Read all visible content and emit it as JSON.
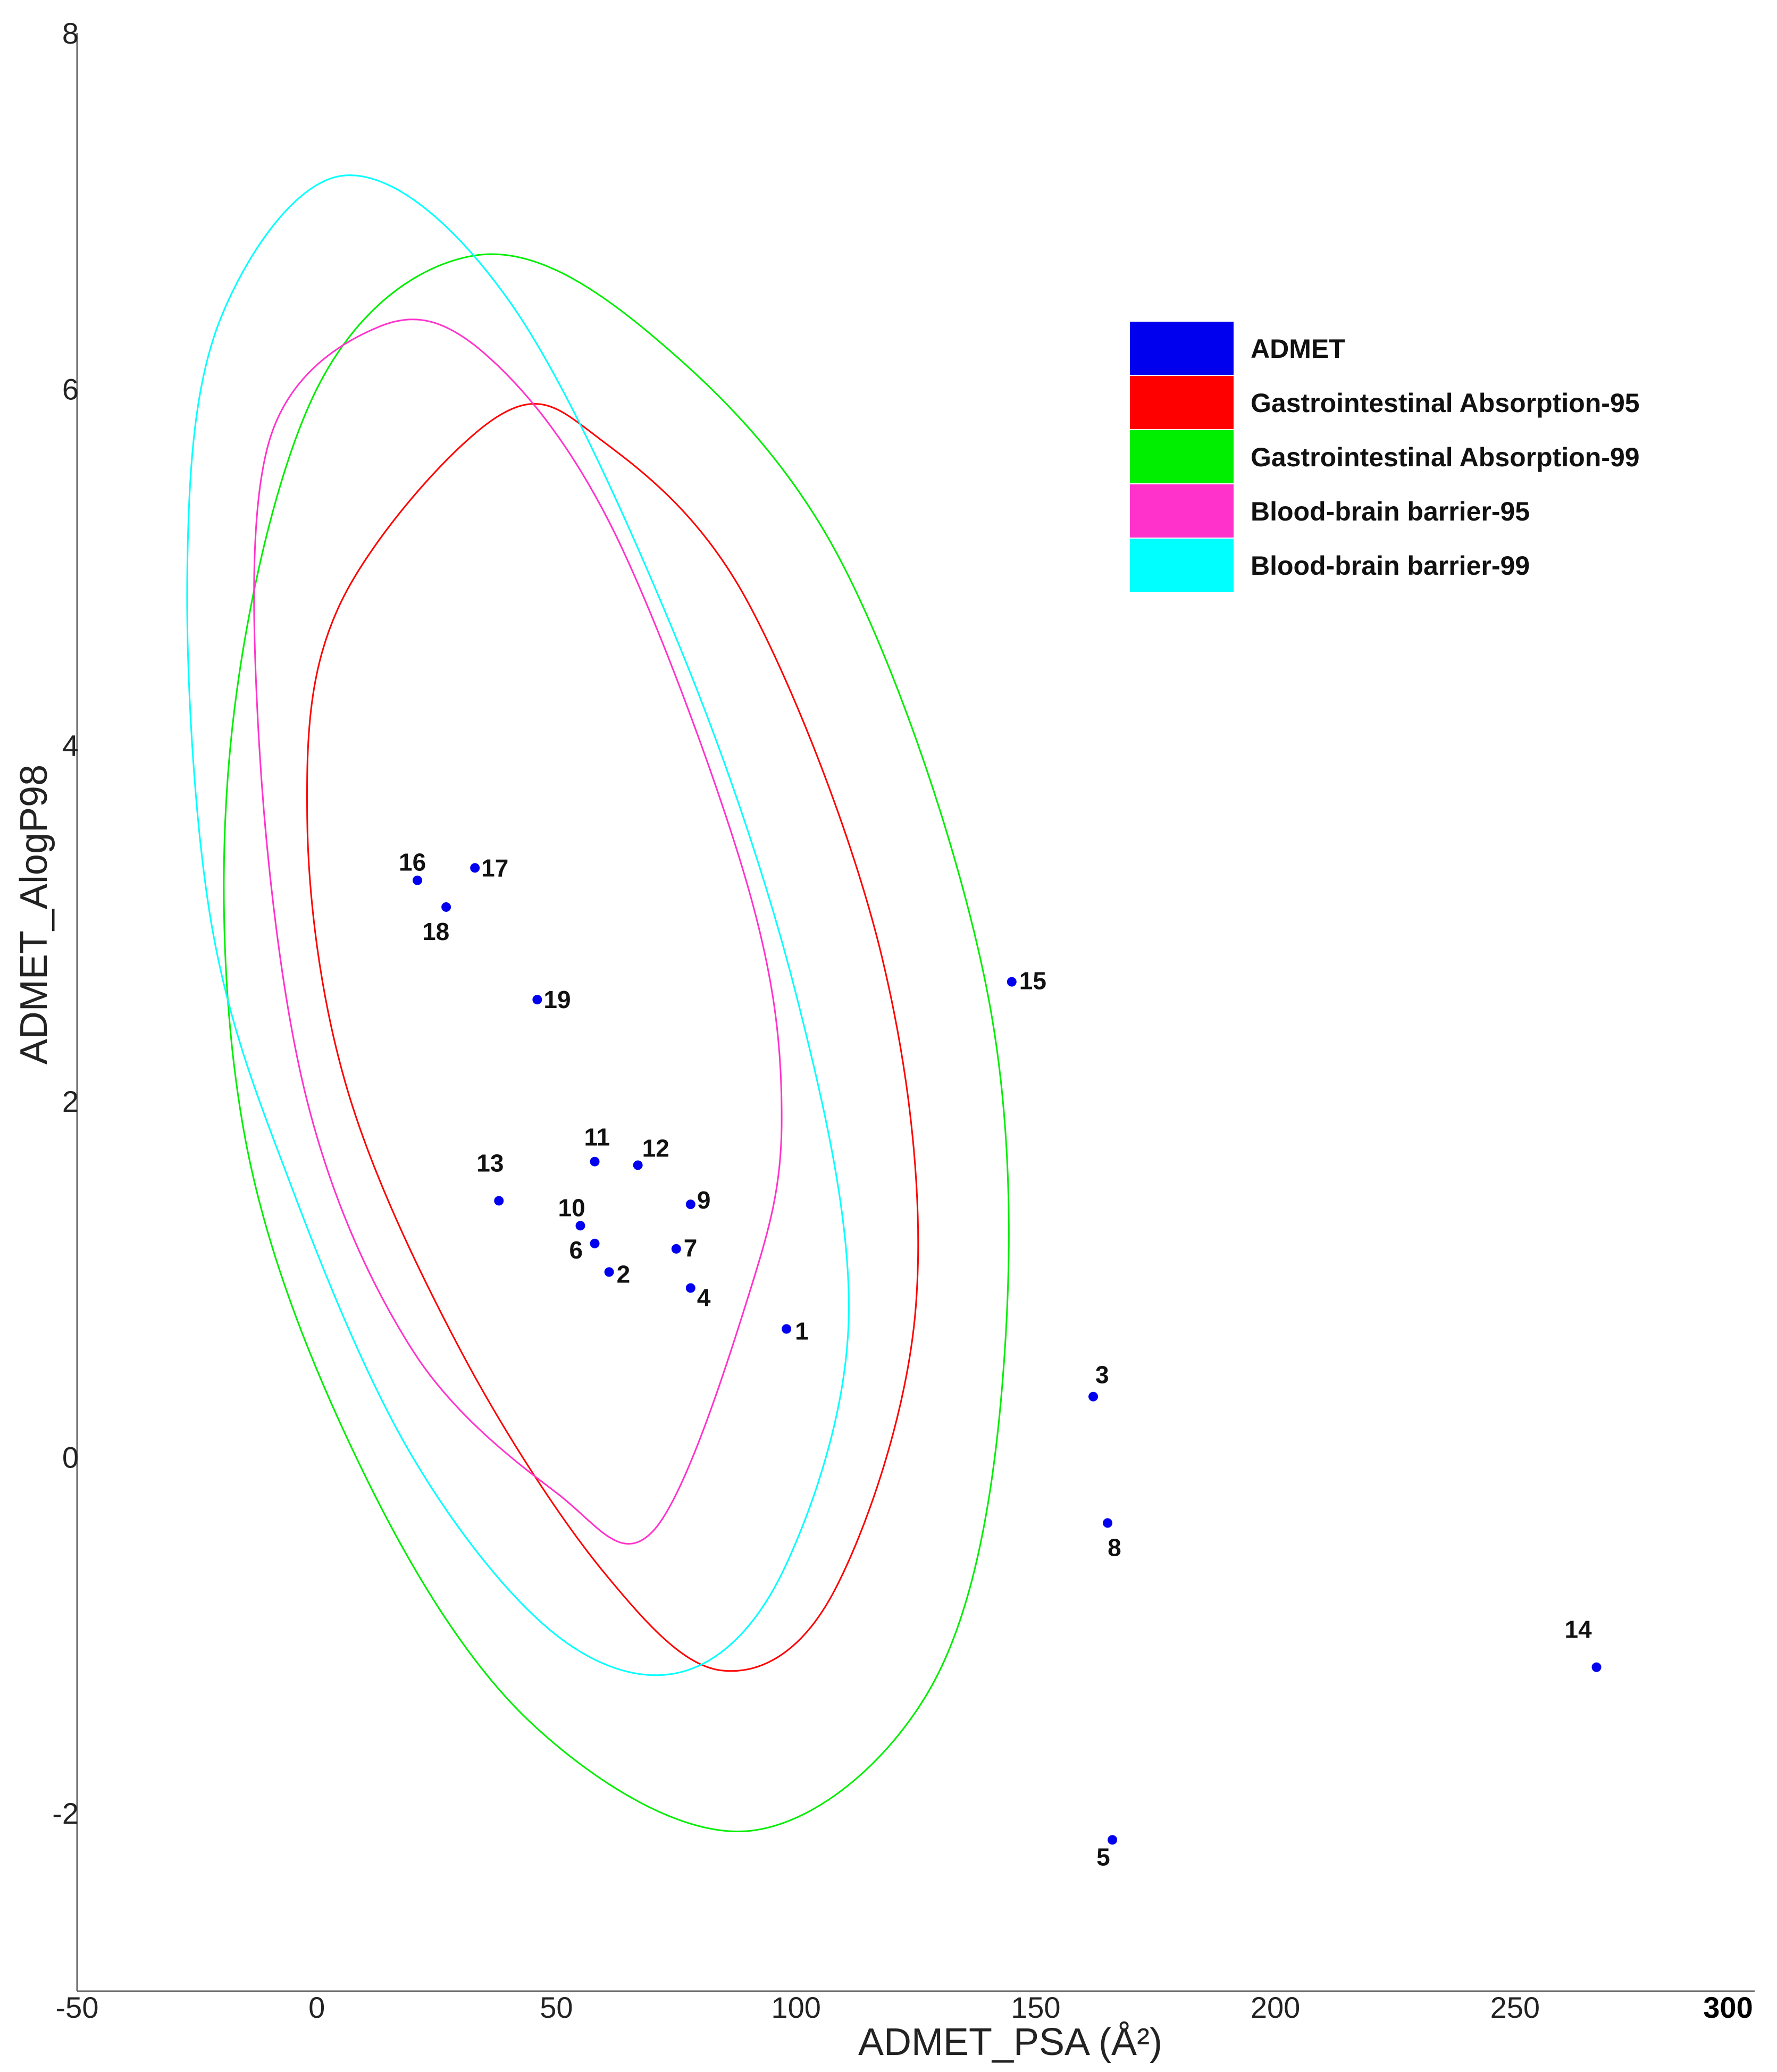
{
  "chart_data": {
    "type": "scatter",
    "title": "",
    "xlabel": "ADMET_PSA (Å²)",
    "ylabel": "ADMET_AlogP98",
    "xlim": [
      -50,
      300
    ],
    "ylim": [
      -3,
      8
    ],
    "x_ticks": [
      {
        "value": -50,
        "label": "-50"
      },
      {
        "value": 0,
        "label": "0"
      },
      {
        "value": 50,
        "label": "50"
      },
      {
        "value": 100,
        "label": "100"
      },
      {
        "value": 150,
        "label": "150"
      },
      {
        "value": 200,
        "label": "200"
      },
      {
        "value": 250,
        "label": "250"
      },
      {
        "value": 300,
        "label": "300"
      }
    ],
    "y_ticks": [
      {
        "value": -2,
        "label": "-2"
      },
      {
        "value": 0,
        "label": "0"
      },
      {
        "value": 2,
        "label": "2"
      },
      {
        "value": 4,
        "label": "4"
      },
      {
        "value": 6,
        "label": "6"
      },
      {
        "value": 8,
        "label": "8"
      }
    ],
    "grid": false,
    "legend_position": "top-right",
    "legend": [
      {
        "label": "ADMET",
        "color": "#0000ee"
      },
      {
        "label": "Gastrointestinal Absorption-95",
        "color": "#ff0000"
      },
      {
        "label": "Gastrointestinal Absorption-99",
        "color": "#00ee00"
      },
      {
        "label": "Blood-brain barrier-95",
        "color": "#ff33cc"
      },
      {
        "label": "Blood-brain barrier-99",
        "color": "#00ffff"
      }
    ],
    "ellipses": [
      {
        "name": "Gastrointestinal Absorption-95",
        "color": "#ff0000",
        "stroke_width": 3,
        "points": [
          [
            38,
            5.85
          ],
          [
            5,
            4.8
          ],
          [
            -2,
            3.6
          ],
          [
            6,
            2.1
          ],
          [
            30,
            0.6
          ],
          [
            60,
            -0.65
          ],
          [
            85,
            -1.2
          ],
          [
            108,
            -0.75
          ],
          [
            125,
            0.85
          ],
          [
            118,
            2.8
          ],
          [
            90,
            4.8
          ],
          [
            60,
            5.7
          ]
        ]
      },
      {
        "name": "Gastrointestinal Absorption-99",
        "color": "#00ee00",
        "stroke_width": 3,
        "points": [
          [
            33,
            6.75
          ],
          [
            0,
            6.0
          ],
          [
            -18,
            4.0
          ],
          [
            -15,
            1.8
          ],
          [
            10,
            -0.1
          ],
          [
            45,
            -1.5
          ],
          [
            90,
            -2.1
          ],
          [
            128,
            -1.3
          ],
          [
            143,
            0.4
          ],
          [
            140,
            2.6
          ],
          [
            110,
            5.0
          ],
          [
            70,
            6.3
          ]
        ]
      },
      {
        "name": "Blood-brain barrier-95",
        "color": "#ff33cc",
        "stroke_width": 3,
        "points": [
          [
            13,
            6.35
          ],
          [
            -10,
            5.7
          ],
          [
            -12,
            4.0
          ],
          [
            -2,
            2.0
          ],
          [
            20,
            0.6
          ],
          [
            50,
            -0.2
          ],
          [
            70,
            -0.42
          ],
          [
            90,
            0.9
          ],
          [
            97,
            1.9
          ],
          [
            90,
            3.2
          ],
          [
            62,
            5.2
          ],
          [
            35,
            6.2
          ]
        ]
      },
      {
        "name": "Blood-brain barrier-99",
        "color": "#00ffff",
        "stroke_width": 3,
        "points": [
          [
            6,
            7.2
          ],
          [
            -20,
            6.4
          ],
          [
            -27,
            5.0
          ],
          [
            -22,
            3.0
          ],
          [
            -5,
            1.5
          ],
          [
            20,
            0.0
          ],
          [
            50,
            -1.0
          ],
          [
            77,
            -1.2
          ],
          [
            98,
            -0.6
          ],
          [
            111,
            0.8
          ],
          [
            100,
            2.6
          ],
          [
            75,
            4.6
          ],
          [
            40,
            6.5
          ]
        ]
      }
    ],
    "points": [
      {
        "label": "1",
        "x": 98,
        "y": 0.72
      },
      {
        "label": "2",
        "x": 61,
        "y": 1.04
      },
      {
        "label": "3",
        "x": 162,
        "y": 0.34
      },
      {
        "label": "4",
        "x": 78,
        "y": 0.95
      },
      {
        "label": "5",
        "x": 166,
        "y": -2.15
      },
      {
        "label": "6",
        "x": 58,
        "y": 1.2
      },
      {
        "label": "7",
        "x": 75,
        "y": 1.17
      },
      {
        "label": "8",
        "x": 165,
        "y": -0.37
      },
      {
        "label": "9",
        "x": 78,
        "y": 1.42
      },
      {
        "label": "10",
        "x": 55,
        "y": 1.3
      },
      {
        "label": "11",
        "x": 58,
        "y": 1.66
      },
      {
        "label": "12",
        "x": 67,
        "y": 1.64
      },
      {
        "label": "13",
        "x": 38,
        "y": 1.44
      },
      {
        "label": "14",
        "x": 267,
        "y": -1.18
      },
      {
        "label": "15",
        "x": 145,
        "y": 2.67
      },
      {
        "label": "16",
        "x": 21,
        "y": 3.24
      },
      {
        "label": "17",
        "x": 33,
        "y": 3.31
      },
      {
        "label": "18",
        "x": 27,
        "y": 3.09
      },
      {
        "label": "19",
        "x": 46,
        "y": 2.57
      }
    ],
    "point_color": "#0000ee"
  }
}
